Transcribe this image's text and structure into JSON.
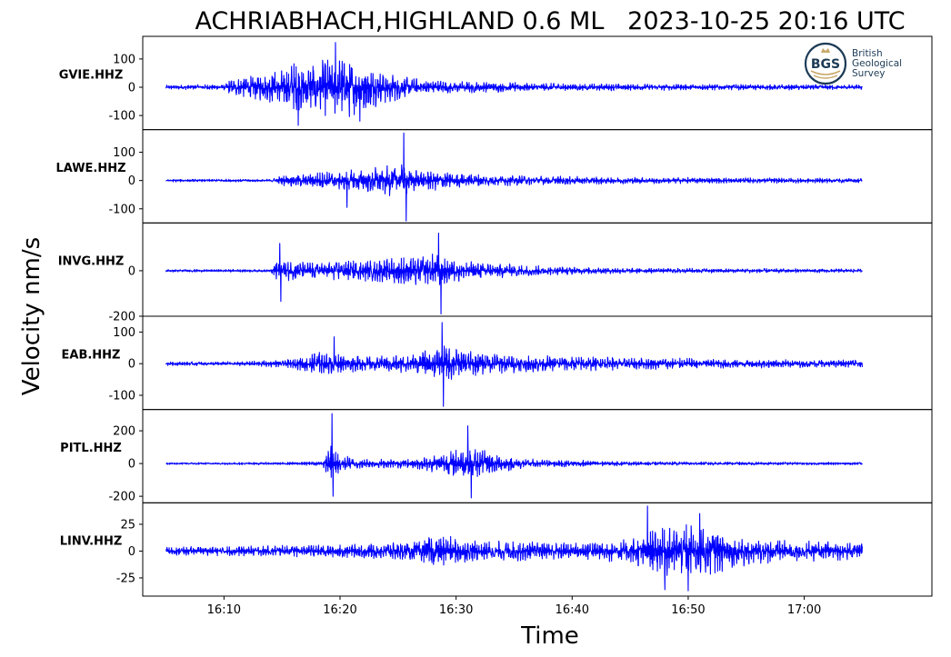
{
  "chart_data": {
    "type": "line",
    "title": "ACHRIABHACH,HIGHLAND 0.6 ML   2023-10-25 20:16 UTC",
    "xlabel": "Time",
    "ylabel": "Velocity nm/s",
    "x_range": [
      "16:03:00",
      "17:11:00"
    ],
    "x_ticks": [
      "16:10",
      "16:20",
      "16:30",
      "16:40",
      "16:50",
      "17:00"
    ],
    "grid": false,
    "trace_color": "#0000ff",
    "logo": {
      "text_lines": [
        "British",
        "Geological",
        "Survey"
      ],
      "mark": "BGS",
      "position": "top-right"
    },
    "panels": [
      {
        "station": "GVIE.HHZ",
        "ylim": [
          -150,
          180
        ],
        "y_ticks": [
          100,
          0,
          -100
        ],
        "envelope": [
          [
            "16:05",
            8
          ],
          [
            "16:10",
            10
          ],
          [
            "16:10.5",
            28
          ],
          [
            "16:14",
            55
          ],
          [
            "16:16",
            90
          ],
          [
            "16:18",
            100
          ],
          [
            "16:20",
            110
          ],
          [
            "16:21",
            115
          ],
          [
            "16:23",
            70
          ],
          [
            "16:26",
            35
          ],
          [
            "16:30",
            22
          ],
          [
            "16:40",
            13
          ],
          [
            "16:50",
            11
          ],
          [
            "17:05",
            9
          ]
        ],
        "peaks": [
          [
            "16:19.6",
            158
          ],
          [
            "16:16.4",
            -135
          ],
          [
            "16:21.7",
            -120
          ]
        ]
      },
      {
        "station": "LAWE.HHZ",
        "ylim": [
          -150,
          180
        ],
        "y_ticks": [
          100,
          0,
          -100
        ],
        "envelope": [
          [
            "16:05",
            5
          ],
          [
            "16:14",
            5
          ],
          [
            "16:15",
            18
          ],
          [
            "16:18",
            30
          ],
          [
            "16:21",
            38
          ],
          [
            "16:25",
            60
          ],
          [
            "16:27",
            42
          ],
          [
            "16:30",
            28
          ],
          [
            "16:35",
            18
          ],
          [
            "16:45",
            12
          ],
          [
            "17:05",
            8
          ]
        ],
        "peaks": [
          [
            "16:25.5",
            168
          ],
          [
            "16:25.7",
            -143
          ],
          [
            "16:20.6",
            -95
          ]
        ]
      },
      {
        "station": "INVG.HHZ",
        "ylim": [
          -200,
          210
        ],
        "y_ticks": [
          0,
          -200
        ],
        "envelope": [
          [
            "16:05",
            6
          ],
          [
            "16:14",
            6
          ],
          [
            "16:14.5",
            55
          ],
          [
            "16:17",
            38
          ],
          [
            "16:20",
            45
          ],
          [
            "16:24",
            55
          ],
          [
            "16:28",
            80
          ],
          [
            "16:30",
            50
          ],
          [
            "16:33",
            35
          ],
          [
            "16:38",
            20
          ],
          [
            "16:45",
            12
          ],
          [
            "17:05",
            8
          ]
        ],
        "peaks": [
          [
            "16:28.5",
            165
          ],
          [
            "16:28.7",
            -190
          ],
          [
            "16:14.8",
            120
          ],
          [
            "16:14.9",
            -135
          ]
        ]
      },
      {
        "station": "EAB.HHZ",
        "ylim": [
          -145,
          150
        ],
        "y_ticks": [
          100,
          0,
          -100
        ],
        "envelope": [
          [
            "16:05",
            6
          ],
          [
            "16:12",
            7
          ],
          [
            "16:16",
            15
          ],
          [
            "16:18",
            40
          ],
          [
            "16:20",
            30
          ],
          [
            "16:22",
            25
          ],
          [
            "16:26",
            30
          ],
          [
            "16:29",
            60
          ],
          [
            "16:31",
            40
          ],
          [
            "16:36",
            28
          ],
          [
            "16:45",
            20
          ],
          [
            "16:55",
            14
          ],
          [
            "17:05",
            12
          ]
        ],
        "peaks": [
          [
            "16:28.8",
            130
          ],
          [
            "16:28.9",
            -135
          ],
          [
            "16:19.5",
            85
          ]
        ]
      },
      {
        "station": "PITL.HHZ",
        "ylim": [
          -240,
          330
        ],
        "y_ticks": [
          200,
          0,
          -200
        ],
        "envelope": [
          [
            "16:05",
            6
          ],
          [
            "16:15",
            8
          ],
          [
            "16:18.5",
            15
          ],
          [
            "16:19.2",
            120
          ],
          [
            "16:20",
            60
          ],
          [
            "16:22",
            30
          ],
          [
            "16:26",
            28
          ],
          [
            "16:29",
            70
          ],
          [
            "16:31",
            110
          ],
          [
            "16:33",
            70
          ],
          [
            "16:36",
            30
          ],
          [
            "16:45",
            12
          ],
          [
            "17:05",
            8
          ]
        ],
        "peaks": [
          [
            "16:19.3",
            305
          ],
          [
            "16:19.4",
            -200
          ],
          [
            "16:31",
            230
          ],
          [
            "16:31.3",
            -210
          ]
        ]
      },
      {
        "station": "LINV.HHZ",
        "ylim": [
          -42,
          45
        ],
        "y_ticks": [
          25,
          0,
          -25
        ],
        "envelope": [
          [
            "16:05",
            4
          ],
          [
            "16:20",
            6
          ],
          [
            "16:26",
            10
          ],
          [
            "16:28",
            16
          ],
          [
            "16:32",
            10
          ],
          [
            "16:40",
            9
          ],
          [
            "16:45",
            12
          ],
          [
            "16:47",
            22
          ],
          [
            "16:50",
            26
          ],
          [
            "16:53",
            20
          ],
          [
            "16:56",
            12
          ],
          [
            "17:05",
            8
          ]
        ],
        "peaks": [
          [
            "16:46.5",
            42
          ],
          [
            "16:48",
            -36
          ],
          [
            "16:50",
            -37
          ],
          [
            "16:51",
            35
          ]
        ]
      }
    ]
  }
}
